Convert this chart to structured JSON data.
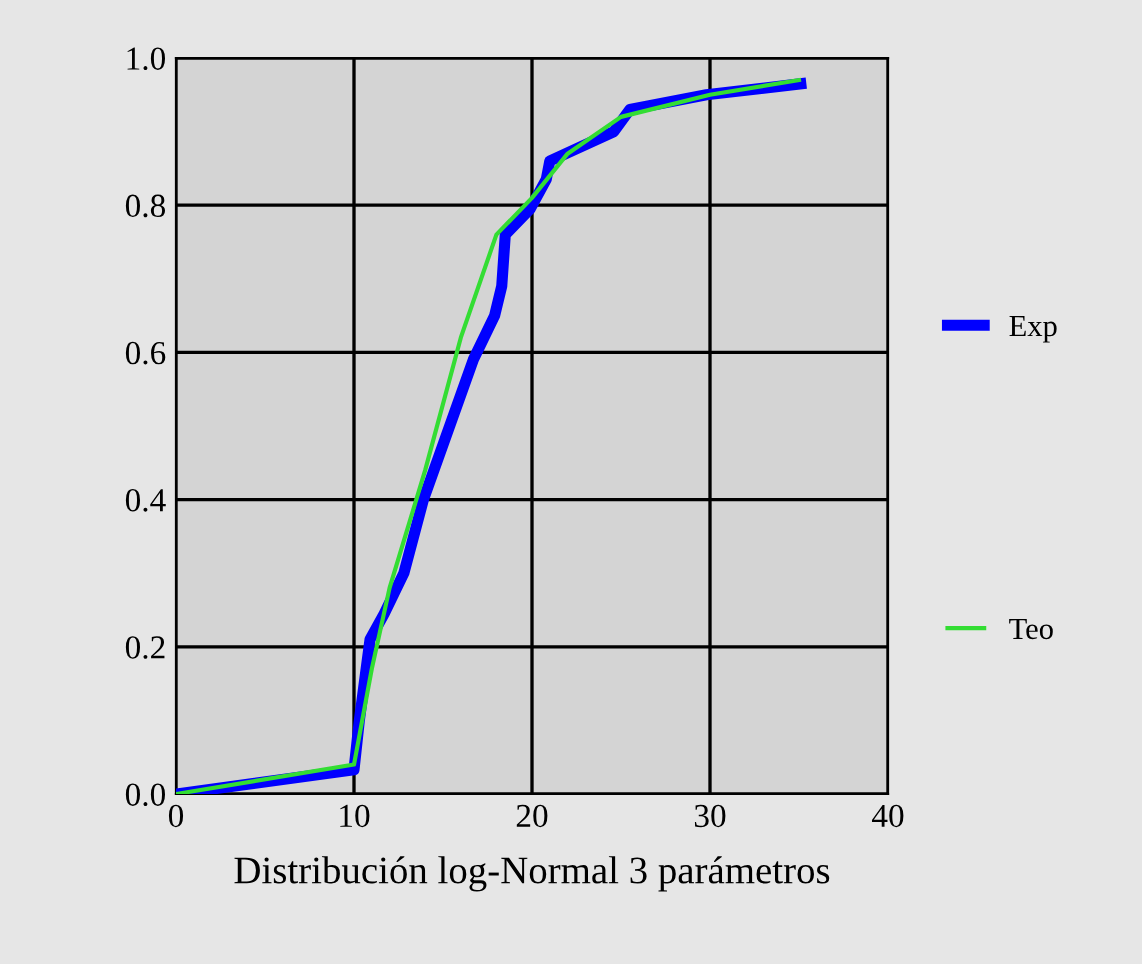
{
  "chart_data": {
    "type": "line",
    "xlabel": "Distribución log-Normal 3 parámetros",
    "xlim": [
      0,
      40
    ],
    "xticks": [
      0,
      10,
      20,
      30,
      40
    ],
    "ylim": [
      0,
      1.0
    ],
    "yticks": [
      {
        "value": 0,
        "label": "0.0"
      },
      0.2,
      0.4,
      0.6,
      0.8,
      {
        "value": 1.0,
        "label": "1.0"
      }
    ],
    "grid": true,
    "legend": "right",
    "line_style": "solid",
    "marker": "none",
    "series": [
      {
        "name": "Exp",
        "color": "#0000ff",
        "x": [
          0,
          10,
          10.3,
          10.9,
          11.7,
          12.8,
          13.9,
          16.7,
          17.9,
          18.3,
          18.5,
          19.9,
          20.8,
          21.0,
          24.6,
          25.5,
          29.8,
          35.1
        ],
        "values": [
          0,
          0.033,
          0.1,
          0.21,
          0.245,
          0.3,
          0.4,
          0.59,
          0.65,
          0.69,
          0.76,
          0.795,
          0.835,
          0.86,
          0.9,
          0.93,
          0.95,
          0.965
        ]
      },
      {
        "name": "Teo",
        "color": "#33dd33",
        "x": [
          0,
          10,
          11,
          12,
          14,
          16,
          18,
          20,
          22,
          25,
          30,
          35
        ],
        "values": [
          0,
          0.04,
          0.17,
          0.28,
          0.44,
          0.62,
          0.76,
          0.81,
          0.87,
          0.92,
          0.95,
          0.97
        ]
      }
    ]
  }
}
